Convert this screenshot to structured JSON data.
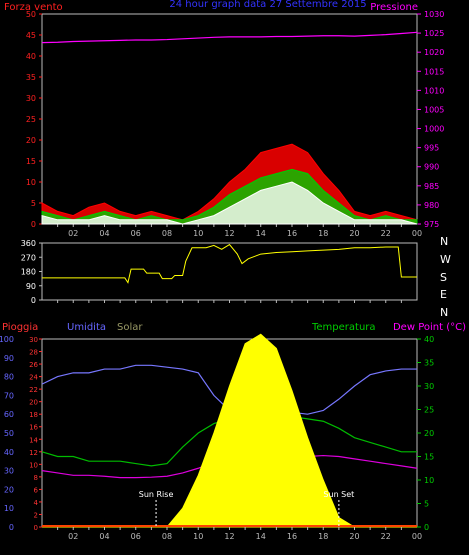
{
  "chart_data": [
    {
      "type": "line",
      "title": "24 hour graph data 27 Settembre 2015",
      "left_axis_label": "Forza vento",
      "right_axis_label": "Pressione",
      "left_ylim": [
        0,
        50
      ],
      "left_ticks": [
        "0",
        "5",
        "10",
        "15",
        "20",
        "25",
        "30",
        "35",
        "40",
        "45",
        "50"
      ],
      "right_ylim": [
        975,
        1030
      ],
      "right_ticks": [
        "975",
        "980",
        "985",
        "990",
        "995",
        "1000",
        "1005",
        "1010",
        "1015",
        "1020",
        "1025",
        "1030"
      ],
      "x_hours": [
        0,
        1,
        2,
        3,
        4,
        5,
        6,
        7,
        8,
        9,
        10,
        11,
        12,
        13,
        14,
        15,
        16,
        17,
        18,
        19,
        20,
        21,
        22,
        23,
        24
      ],
      "series": [
        {
          "color": "#ff0000",
          "values": [
            5,
            3,
            2,
            4,
            5,
            3,
            2,
            3,
            2,
            1,
            3,
            6,
            10,
            13,
            17,
            18,
            19,
            17,
            12,
            8,
            3,
            2,
            3,
            2,
            1
          ]
        },
        {
          "color": "#00cc00",
          "values": [
            3,
            2,
            1,
            2,
            3,
            2,
            1,
            2,
            1,
            1,
            2,
            4,
            7,
            9,
            11,
            12,
            13,
            12,
            8,
            5,
            2,
            1,
            2,
            1,
            1
          ]
        },
        {
          "color": "#ffffff",
          "values": [
            2,
            1,
            1,
            1,
            2,
            1,
            1,
            1,
            1,
            0,
            1,
            2,
            4,
            6,
            8,
            9,
            10,
            8,
            5,
            3,
            1,
            1,
            1,
            1,
            0
          ]
        },
        {
          "color": "#ff00ff",
          "values": [
            1022.5,
            1022.6,
            1022.8,
            1022.9,
            1023.0,
            1023.1,
            1023.2,
            1023.2,
            1023.3,
            1023.5,
            1023.7,
            1023.9,
            1024.0,
            1024.0,
            1024.0,
            1024.1,
            1024.1,
            1024.2,
            1024.3,
            1024.3,
            1024.2,
            1024.4,
            1024.6,
            1024.9,
            1025.2
          ]
        }
      ],
      "x_tick_labels": [
        "02",
        "04",
        "06",
        "08",
        "10",
        "12",
        "14",
        "16",
        "18",
        "20",
        "22",
        "00"
      ]
    },
    {
      "type": "line",
      "left_ticks": [
        "0",
        "90",
        "180",
        "270",
        "360"
      ],
      "ylim": [
        0,
        360
      ],
      "directions": [
        "N",
        "W",
        "S",
        "E",
        "N"
      ],
      "series": [
        {
          "color": "#ffff00",
          "points": [
            [
              0,
              140
            ],
            [
              5.3,
              140
            ],
            [
              5.5,
              110
            ],
            [
              5.7,
              195
            ],
            [
              6.5,
              195
            ],
            [
              6.7,
              170
            ],
            [
              7.5,
              170
            ],
            [
              7.7,
              135
            ],
            [
              8.3,
              135
            ],
            [
              8.5,
              155
            ],
            [
              9.0,
              155
            ],
            [
              9.2,
              245
            ],
            [
              9.6,
              330
            ],
            [
              10.5,
              330
            ],
            [
              11.0,
              345
            ],
            [
              11.5,
              320
            ],
            [
              12.0,
              350
            ],
            [
              12.5,
              290
            ],
            [
              12.8,
              230
            ],
            [
              13.2,
              260
            ],
            [
              14,
              290
            ],
            [
              15,
              300
            ],
            [
              16,
              305
            ],
            [
              17,
              310
            ],
            [
              18,
              315
            ],
            [
              19,
              320
            ],
            [
              20,
              330
            ],
            [
              21,
              330
            ],
            [
              22,
              335
            ],
            [
              22.8,
              335
            ],
            [
              23.0,
              145
            ],
            [
              24,
              145
            ]
          ]
        }
      ],
      "x_tick_labels": [
        "02",
        "04",
        "06",
        "08",
        "10",
        "12",
        "14",
        "16",
        "18",
        "20",
        "22",
        "00"
      ]
    },
    {
      "type": "line",
      "headers": {
        "rain": "Pioggia",
        "humidity": "Umidita",
        "solar": "Solar",
        "temperature": "Temperatura",
        "dewpoint": "Dew Point (°C)"
      },
      "humidity_ticks": [
        "0",
        "10",
        "20",
        "30",
        "40",
        "50",
        "60",
        "70",
        "80",
        "90",
        "100"
      ],
      "rain_ticks": [
        "0",
        "2",
        "4",
        "6",
        "8",
        "10",
        "12",
        "14",
        "16",
        "18",
        "20",
        "22",
        "24",
        "26",
        "28",
        "30"
      ],
      "temp_ticks": [
        "0",
        "5",
        "10",
        "15",
        "20",
        "25",
        "30",
        "35",
        "40"
      ],
      "humidity_ylim": [
        0,
        100
      ],
      "temp_ylim": [
        0,
        40
      ],
      "x_hours": [
        0,
        1,
        2,
        3,
        4,
        5,
        6,
        7,
        8,
        9,
        10,
        11,
        12,
        13,
        14,
        15,
        16,
        17,
        18,
        19,
        20,
        21,
        22,
        23,
        24
      ],
      "series": [
        {
          "name": "Umidita",
          "color": "#7777ff",
          "values": [
            76,
            80,
            82,
            82,
            84,
            84,
            86,
            86,
            85,
            84,
            82,
            70,
            62,
            59,
            58,
            59,
            61,
            60,
            62,
            68,
            75,
            81,
            83,
            84,
            84
          ]
        },
        {
          "name": "Temperatura",
          "color": "#00bb00",
          "values": [
            16,
            15,
            15,
            14,
            14,
            14,
            13.5,
            13,
            13.5,
            17,
            20,
            22,
            23,
            24,
            24,
            24,
            23.5,
            23,
            22.5,
            21,
            19,
            18,
            17,
            16,
            16
          ]
        },
        {
          "name": "Dew Point (°C)",
          "color": "#dd00dd",
          "values": [
            12,
            11.5,
            11,
            11,
            10.8,
            10.5,
            10.5,
            10.6,
            10.8,
            11.5,
            12.5,
            13.8,
            15,
            15.3,
            15.5,
            15.3,
            15,
            15,
            15.2,
            15,
            14.5,
            14,
            13.5,
            13,
            12.5
          ]
        },
        {
          "name": "Solar",
          "color": "#ffff00",
          "values": [
            0,
            0,
            0,
            0,
            0,
            0,
            0,
            0,
            0,
            4,
            11,
            20,
            30,
            39,
            41,
            38,
            29,
            19,
            10,
            2,
            0,
            0,
            0,
            0,
            0
          ]
        }
      ],
      "sun_rise_label": "Sun Rise",
      "sun_set_label": "Sun Set",
      "sun_rise_hour": 7.3,
      "sun_set_hour": 19.0,
      "x_tick_labels": [
        "02",
        "04",
        "06",
        "08",
        "10",
        "12",
        "14",
        "16",
        "18",
        "20",
        "22",
        "00"
      ]
    }
  ],
  "colors": {
    "wind_axis": "#ff2020",
    "pressure_axis": "#ff00ff",
    "title": "#3333ff",
    "humidity_axis": "#6666ff",
    "rain_axis": "#ff3333",
    "temp_axis": "#00cc00",
    "solar_label": "#999966",
    "frame": "#bbbbbb"
  }
}
